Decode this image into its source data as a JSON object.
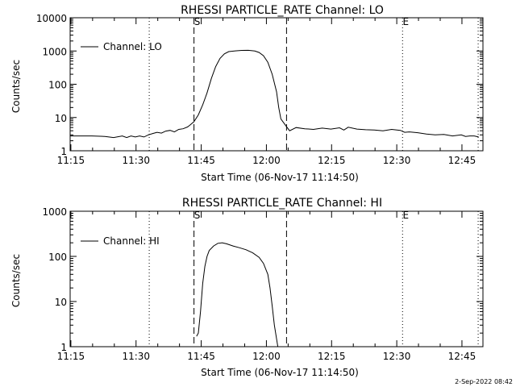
{
  "footer": {
    "timestamp": "2-Sep-2022 08:42"
  },
  "chart_data": [
    {
      "type": "line",
      "title": "RHESSI PARTICLE_RATE Channel: LO",
      "xlabel": "Start Time (06-Nov-17 11:14:50)",
      "ylabel": "Counts/sec",
      "y_scale": "log",
      "ylim": [
        1,
        10000
      ],
      "y_ticks": [
        "1",
        "10",
        "100",
        "1000",
        "10000"
      ],
      "x_ticks": [
        "11:15",
        "11:30",
        "11:45",
        "12:00",
        "12:15",
        "12:30",
        "12:45"
      ],
      "xlim_minutes": [
        0,
        95
      ],
      "legend": {
        "label": "Channel: LO",
        "position": "top-left"
      },
      "markers": [
        {
          "label": "S",
          "x": 28.5,
          "style": "dashed"
        },
        {
          "label": "",
          "x": 49.8,
          "style": "dashed"
        },
        {
          "label": "",
          "x": 18.2,
          "style": "dotted"
        },
        {
          "label": "E",
          "x": 76.5,
          "style": "dotted"
        },
        {
          "label": "",
          "x": 93.9,
          "style": "dotted"
        }
      ],
      "series": [
        {
          "name": "Channel: LO",
          "x": [
            0,
            2,
            5,
            8,
            10,
            12,
            13,
            14,
            15,
            16,
            17,
            18,
            19,
            20,
            21,
            22,
            23,
            24,
            25,
            26,
            27,
            27.5,
            28.5,
            29.5,
            30.5,
            31.5,
            32.5,
            33.5,
            34.5,
            35.5,
            36.5,
            38,
            39.5,
            41,
            42.5,
            43.5,
            44.5,
            45.5,
            46.5,
            47.5,
            48,
            48.5,
            49.5,
            50.5,
            52,
            54,
            56,
            58,
            60,
            62,
            63,
            64,
            66,
            68,
            70,
            72,
            74,
            76,
            77,
            78,
            80,
            82,
            84,
            86,
            88,
            90,
            91,
            92,
            93,
            94
          ],
          "y": [
            2.8,
            2.8,
            2.8,
            2.7,
            2.5,
            2.8,
            2.5,
            2.8,
            2.6,
            2.8,
            2.6,
            3.0,
            3.3,
            3.6,
            3.4,
            3.9,
            4.1,
            3.7,
            4.4,
            4.6,
            5.2,
            5.8,
            7.5,
            12,
            24,
            55,
            150,
            340,
            600,
            820,
            960,
            1010,
            1040,
            1050,
            1000,
            900,
            720,
            460,
            200,
            60,
            20,
            9,
            6,
            4.0,
            5.0,
            4.6,
            4.4,
            4.8,
            4.5,
            4.9,
            4.2,
            5.1,
            4.5,
            4.3,
            4.2,
            4.0,
            4.4,
            4.1,
            3.6,
            3.7,
            3.5,
            3.2,
            3.0,
            3.1,
            2.8,
            3.0,
            2.7,
            2.8,
            2.8,
            2.6
          ]
        }
      ]
    },
    {
      "type": "line",
      "title": "RHESSI PARTICLE_RATE Channel: HI",
      "xlabel": "Start Time (06-Nov-17 11:14:50)",
      "ylabel": "Counts/sec",
      "y_scale": "log",
      "ylim": [
        1,
        1000
      ],
      "y_ticks": [
        "1",
        "10",
        "100",
        "1000"
      ],
      "x_ticks": [
        "11:15",
        "11:30",
        "11:45",
        "12:00",
        "12:15",
        "12:30",
        "12:45"
      ],
      "xlim_minutes": [
        0,
        95
      ],
      "legend": {
        "label": "Channel: HI",
        "position": "top-left"
      },
      "markers": [
        {
          "label": "S",
          "x": 28.5,
          "style": "dashed"
        },
        {
          "label": "",
          "x": 49.8,
          "style": "dashed"
        },
        {
          "label": "",
          "x": 18.2,
          "style": "dotted"
        },
        {
          "label": "E",
          "x": 76.5,
          "style": "dotted"
        },
        {
          "label": "",
          "x": 93.9,
          "style": "dotted"
        }
      ],
      "series": [
        {
          "name": "Channel: HI",
          "x": [
            29.1,
            29.5,
            30,
            30.5,
            31,
            31.5,
            32,
            33,
            34,
            35,
            36,
            37.5,
            39,
            40.5,
            42,
            43.5,
            44.5,
            45.5,
            46,
            46.5,
            47,
            47.5,
            47.8
          ],
          "y": [
            1.7,
            2.0,
            6,
            25,
            60,
            100,
            135,
            170,
            195,
            200,
            190,
            170,
            155,
            140,
            120,
            95,
            70,
            40,
            20,
            8,
            3,
            1.5,
            1.0
          ]
        }
      ]
    }
  ]
}
